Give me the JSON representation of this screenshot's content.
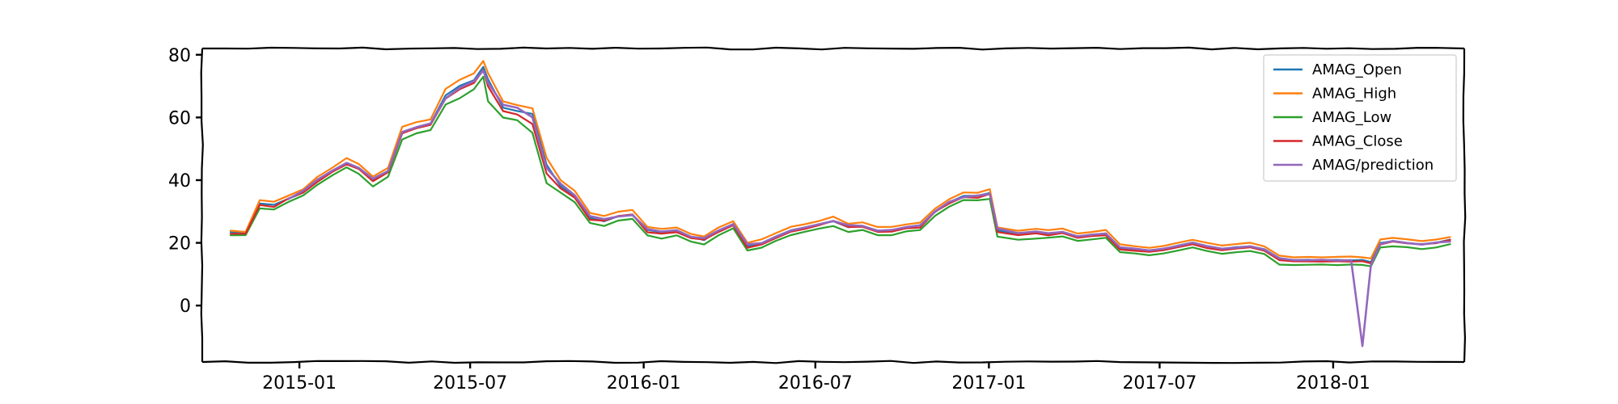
{
  "chart_data": {
    "type": "line",
    "title": "",
    "xlabel": "",
    "ylabel": "",
    "xlim": [
      "2014-09-20",
      "2018-05-20"
    ],
    "ylim": [
      -18,
      82
    ],
    "grid": false,
    "legend_position": "top-right",
    "x_ticks": [
      "2015-01",
      "2015-07",
      "2016-01",
      "2016-07",
      "2017-01",
      "2017-07",
      "2018-01"
    ],
    "y_ticks": [
      0,
      20,
      40,
      60,
      80
    ],
    "x_tick_dates": [
      "2015-01-01",
      "2015-07-01",
      "2016-01-01",
      "2016-07-01",
      "2017-01-01",
      "2017-07-01",
      "2018-01-01"
    ],
    "x": [
      "2014-10-20",
      "2014-11-05",
      "2014-11-20",
      "2014-12-05",
      "2014-12-20",
      "2015-01-05",
      "2015-01-20",
      "2015-02-05",
      "2015-02-20",
      "2015-03-05",
      "2015-03-20",
      "2015-04-05",
      "2015-04-20",
      "2015-05-05",
      "2015-05-20",
      "2015-06-05",
      "2015-06-20",
      "2015-07-05",
      "2015-07-15",
      "2015-07-20",
      "2015-08-05",
      "2015-08-20",
      "2015-09-05",
      "2015-09-20",
      "2015-10-05",
      "2015-10-20",
      "2015-11-05",
      "2015-11-20",
      "2015-12-05",
      "2015-12-20",
      "2016-01-05",
      "2016-01-20",
      "2016-02-05",
      "2016-02-20",
      "2016-03-05",
      "2016-03-20",
      "2016-04-05",
      "2016-04-20",
      "2016-05-05",
      "2016-05-20",
      "2016-06-05",
      "2016-06-20",
      "2016-07-05",
      "2016-07-20",
      "2016-08-05",
      "2016-08-20",
      "2016-09-05",
      "2016-09-20",
      "2016-10-05",
      "2016-10-20",
      "2016-11-05",
      "2016-11-20",
      "2016-12-05",
      "2016-12-20",
      "2017-01-02",
      "2017-01-10",
      "2017-02-01",
      "2017-02-20",
      "2017-03-05",
      "2017-03-20",
      "2017-04-05",
      "2017-04-20",
      "2017-05-05",
      "2017-05-20",
      "2017-06-05",
      "2017-06-20",
      "2017-07-05",
      "2017-07-20",
      "2017-08-05",
      "2017-08-20",
      "2017-09-05",
      "2017-09-20",
      "2017-10-05",
      "2017-10-20",
      "2017-11-05",
      "2017-11-20",
      "2017-12-05",
      "2017-12-20",
      "2018-01-05",
      "2018-01-20",
      "2018-02-01",
      "2018-02-10",
      "2018-02-20",
      "2018-03-05",
      "2018-03-20",
      "2018-04-05",
      "2018-04-20",
      "2018-05-05"
    ],
    "series": [
      {
        "name": "AMAG_Open",
        "color": "#1f77b4",
        "values": [
          23.5,
          23.0,
          32.5,
          32.0,
          34.0,
          36.0,
          40.0,
          43.0,
          45.5,
          44.0,
          40.0,
          43.0,
          55.0,
          57.0,
          58.0,
          67.0,
          70.0,
          72.0,
          76.0,
          72.0,
          63.0,
          62.0,
          61.0,
          45.0,
          38.0,
          35.0,
          28.0,
          27.0,
          28.5,
          29.0,
          24.0,
          23.5,
          24.0,
          22.0,
          21.0,
          24.0,
          26.0,
          19.0,
          20.0,
          22.0,
          24.0,
          25.0,
          26.0,
          27.0,
          25.0,
          25.5,
          24.0,
          24.0,
          25.0,
          25.5,
          30.0,
          33.0,
          35.0,
          35.0,
          36.0,
          24.0,
          23.0,
          23.5,
          23.0,
          23.5,
          22.0,
          22.5,
          23.0,
          18.5,
          18.0,
          17.5,
          18.0,
          19.0,
          20.0,
          19.0,
          18.0,
          18.5,
          19.0,
          18.0,
          15.0,
          14.5,
          14.5,
          14.5,
          14.5,
          14.5,
          14.5,
          14.0,
          20.0,
          20.5,
          20.0,
          19.5,
          20.0,
          21.0
        ]
      },
      {
        "name": "AMAG_High",
        "color": "#ff7f0e",
        "values": [
          24.0,
          23.5,
          33.5,
          33.0,
          35.0,
          37.0,
          41.0,
          44.0,
          47.0,
          45.0,
          41.0,
          44.0,
          57.0,
          58.5,
          59.5,
          69.0,
          72.0,
          74.0,
          78.0,
          74.0,
          65.0,
          64.0,
          63.0,
          47.0,
          40.0,
          36.5,
          29.5,
          28.5,
          30.0,
          30.5,
          25.0,
          24.5,
          25.0,
          23.0,
          22.0,
          25.0,
          27.0,
          20.0,
          21.0,
          23.0,
          25.0,
          26.0,
          27.0,
          28.5,
          26.0,
          26.5,
          25.0,
          25.0,
          26.0,
          26.5,
          31.0,
          34.0,
          36.0,
          36.0,
          37.0,
          25.0,
          24.0,
          24.5,
          24.0,
          24.5,
          23.0,
          23.5,
          24.0,
          19.5,
          19.0,
          18.5,
          19.0,
          20.0,
          21.0,
          20.0,
          19.0,
          19.5,
          20.0,
          19.0,
          16.0,
          15.5,
          15.5,
          15.5,
          15.5,
          15.5,
          15.5,
          15.0,
          21.0,
          21.5,
          21.0,
          20.5,
          21.0,
          22.0
        ]
      },
      {
        "name": "AMAG_Low",
        "color": "#2ca02c",
        "values": [
          22.5,
          22.5,
          31.0,
          30.5,
          33.0,
          35.0,
          38.5,
          41.5,
          44.0,
          42.0,
          38.0,
          41.0,
          53.0,
          55.0,
          56.0,
          64.0,
          66.0,
          69.0,
          73.0,
          65.0,
          60.0,
          59.0,
          55.0,
          39.0,
          36.0,
          33.0,
          26.5,
          25.5,
          27.0,
          27.5,
          22.5,
          21.5,
          22.5,
          20.5,
          19.5,
          22.5,
          24.5,
          17.5,
          18.5,
          20.5,
          22.5,
          23.5,
          24.5,
          25.5,
          23.5,
          24.0,
          22.5,
          22.5,
          23.5,
          24.0,
          28.5,
          31.5,
          33.5,
          33.5,
          34.0,
          22.0,
          21.0,
          21.5,
          21.5,
          22.0,
          20.5,
          21.0,
          21.5,
          17.0,
          16.5,
          16.0,
          16.5,
          17.5,
          18.5,
          17.5,
          16.5,
          17.0,
          17.5,
          16.5,
          13.0,
          13.0,
          13.0,
          13.0,
          13.0,
          13.0,
          13.0,
          12.5,
          18.5,
          19.0,
          18.5,
          18.0,
          18.5,
          19.5
        ]
      },
      {
        "name": "AMAG_Close",
        "color": "#d62728",
        "values": [
          23.0,
          23.0,
          32.0,
          31.5,
          34.0,
          36.0,
          39.5,
          42.5,
          45.0,
          43.5,
          39.5,
          42.5,
          55.0,
          56.5,
          57.5,
          66.0,
          69.0,
          71.0,
          75.0,
          70.0,
          62.0,
          61.0,
          58.0,
          42.0,
          37.5,
          34.5,
          27.5,
          27.0,
          28.5,
          29.0,
          23.5,
          23.0,
          23.5,
          21.5,
          21.0,
          23.5,
          25.5,
          18.5,
          19.5,
          21.5,
          23.5,
          24.5,
          25.5,
          27.0,
          25.0,
          25.0,
          23.5,
          23.5,
          24.5,
          25.0,
          30.0,
          32.5,
          34.5,
          34.5,
          35.5,
          23.5,
          22.5,
          23.0,
          22.5,
          23.0,
          21.5,
          22.0,
          22.5,
          18.0,
          17.5,
          17.0,
          17.5,
          18.5,
          19.5,
          18.5,
          17.5,
          18.0,
          18.5,
          17.5,
          14.5,
          14.0,
          14.0,
          14.0,
          14.0,
          14.0,
          14.0,
          13.5,
          19.5,
          20.5,
          20.0,
          19.5,
          20.0,
          21.0
        ]
      },
      {
        "name": "AMAG/prediction",
        "color": "#9467bd",
        "values": [
          null,
          null,
          null,
          null,
          34.0,
          36.5,
          40.0,
          43.0,
          45.5,
          44.0,
          40.5,
          43.0,
          55.5,
          57.0,
          58.0,
          66.0,
          69.5,
          71.5,
          75.0,
          71.0,
          64.0,
          63.0,
          60.0,
          44.0,
          39.0,
          35.0,
          28.5,
          27.5,
          28.5,
          29.0,
          24.5,
          23.5,
          24.0,
          22.0,
          21.5,
          24.0,
          26.0,
          19.5,
          20.0,
          22.0,
          24.0,
          25.0,
          26.0,
          27.0,
          25.5,
          25.5,
          24.0,
          24.0,
          25.0,
          25.5,
          30.0,
          33.0,
          34.5,
          35.0,
          35.5,
          24.5,
          23.0,
          23.5,
          23.0,
          23.5,
          22.0,
          22.5,
          23.0,
          18.5,
          18.0,
          17.5,
          18.0,
          19.0,
          20.0,
          19.0,
          18.0,
          18.5,
          19.0,
          18.0,
          15.0,
          14.5,
          14.5,
          14.5,
          14.5,
          14.5,
          -13.0,
          13.0,
          19.5,
          20.5,
          20.0,
          19.5,
          20.0,
          20.5
        ]
      }
    ]
  }
}
